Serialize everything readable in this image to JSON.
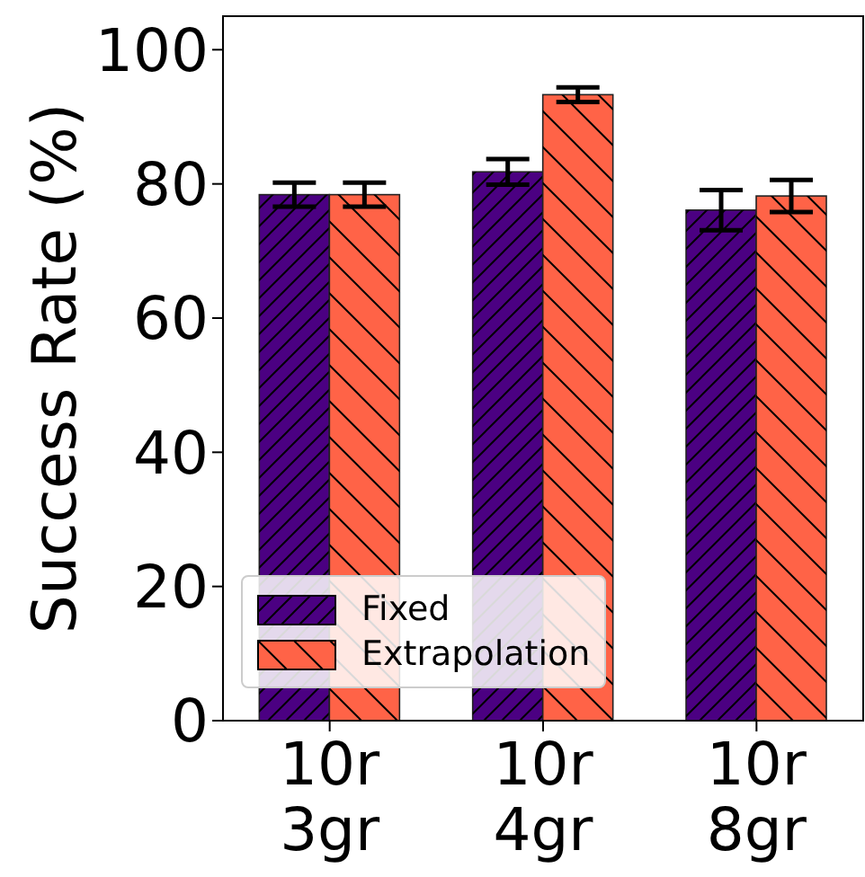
{
  "chart_data": {
    "type": "bar",
    "ylabel": "Success Rate (%)",
    "categories": [
      "10r 3gr",
      "10r 4gr",
      "10r 8gr"
    ],
    "series": [
      {
        "name": "Fixed",
        "color": "#4b0082",
        "values": [
          78.4,
          81.8,
          76.1
        ],
        "errors": [
          1.8,
          1.9,
          3
        ]
      },
      {
        "name": "Extrapolation",
        "color": "#ff6347",
        "values": [
          78.4,
          93.3,
          78.2
        ],
        "errors": [
          1.8,
          1.1,
          2.4
        ]
      }
    ],
    "ylim": [
      0,
      105
    ],
    "yticks": [
      0,
      20,
      40,
      60,
      80,
      100
    ],
    "grid": false,
    "legend": "bottom left"
  }
}
